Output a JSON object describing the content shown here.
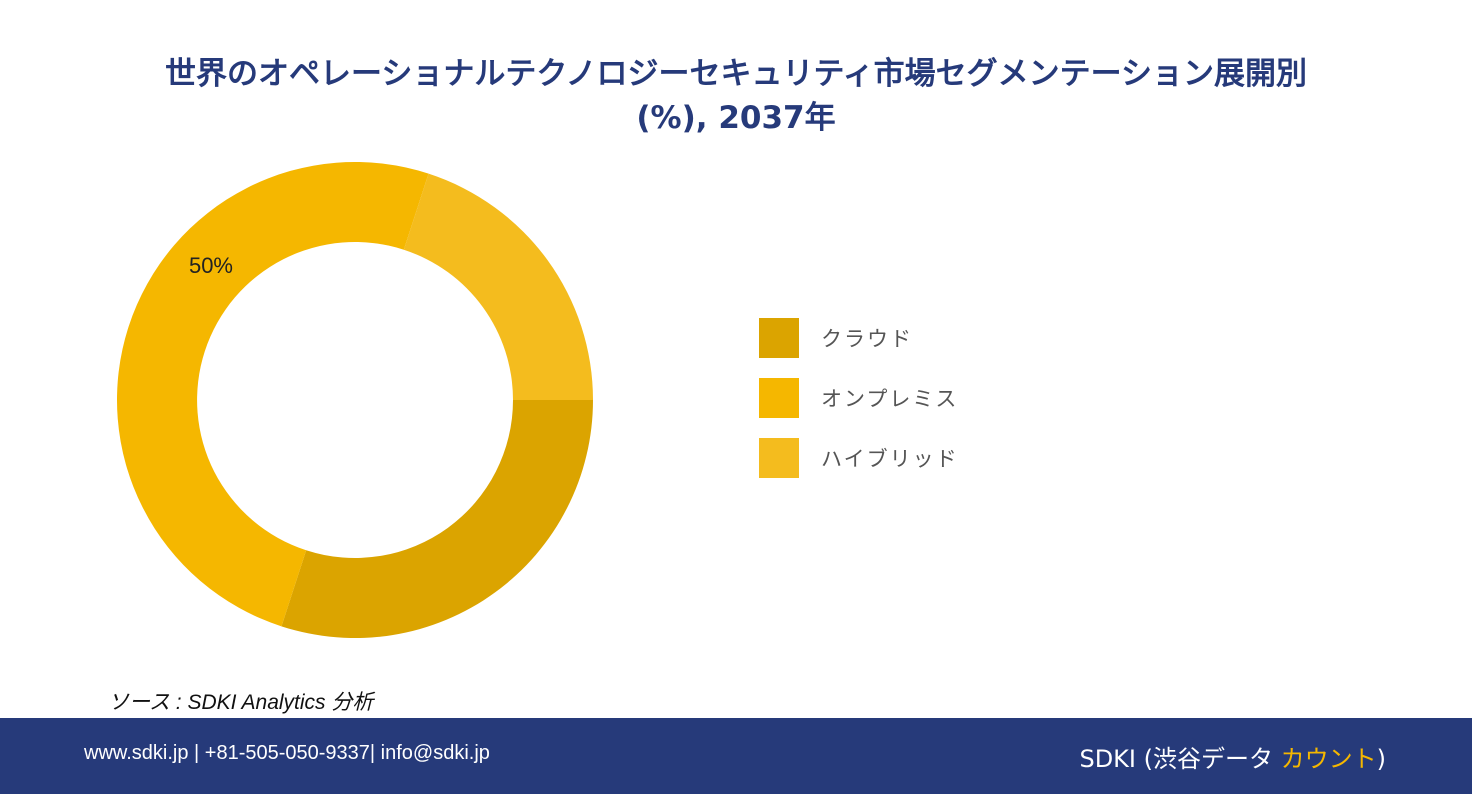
{
  "title_line1": "世界のオペレーショナルテクノロジーセキュリティ市場セグメンテーション展開別",
  "title_line2": "(%), 2037年",
  "chart_data": {
    "type": "pie",
    "donut": true,
    "categories": [
      "クラウド",
      "オンプレミス",
      "ハイブリッド"
    ],
    "values": [
      30,
      50,
      20
    ],
    "colors": [
      "#dba400",
      "#f5b700",
      "#f4bc1e"
    ],
    "data_labels": [
      "",
      "50%",
      ""
    ],
    "legend_position": "right"
  },
  "source": "ソース : SDKI Analytics  分析",
  "footer": {
    "contact": "www.sdki.jp | +81-505-050-9337| info@sdki.jp",
    "brand_prefix": "SDKI (渋谷データ ",
    "brand_accent": "カウント",
    "brand_suffix": ")"
  }
}
